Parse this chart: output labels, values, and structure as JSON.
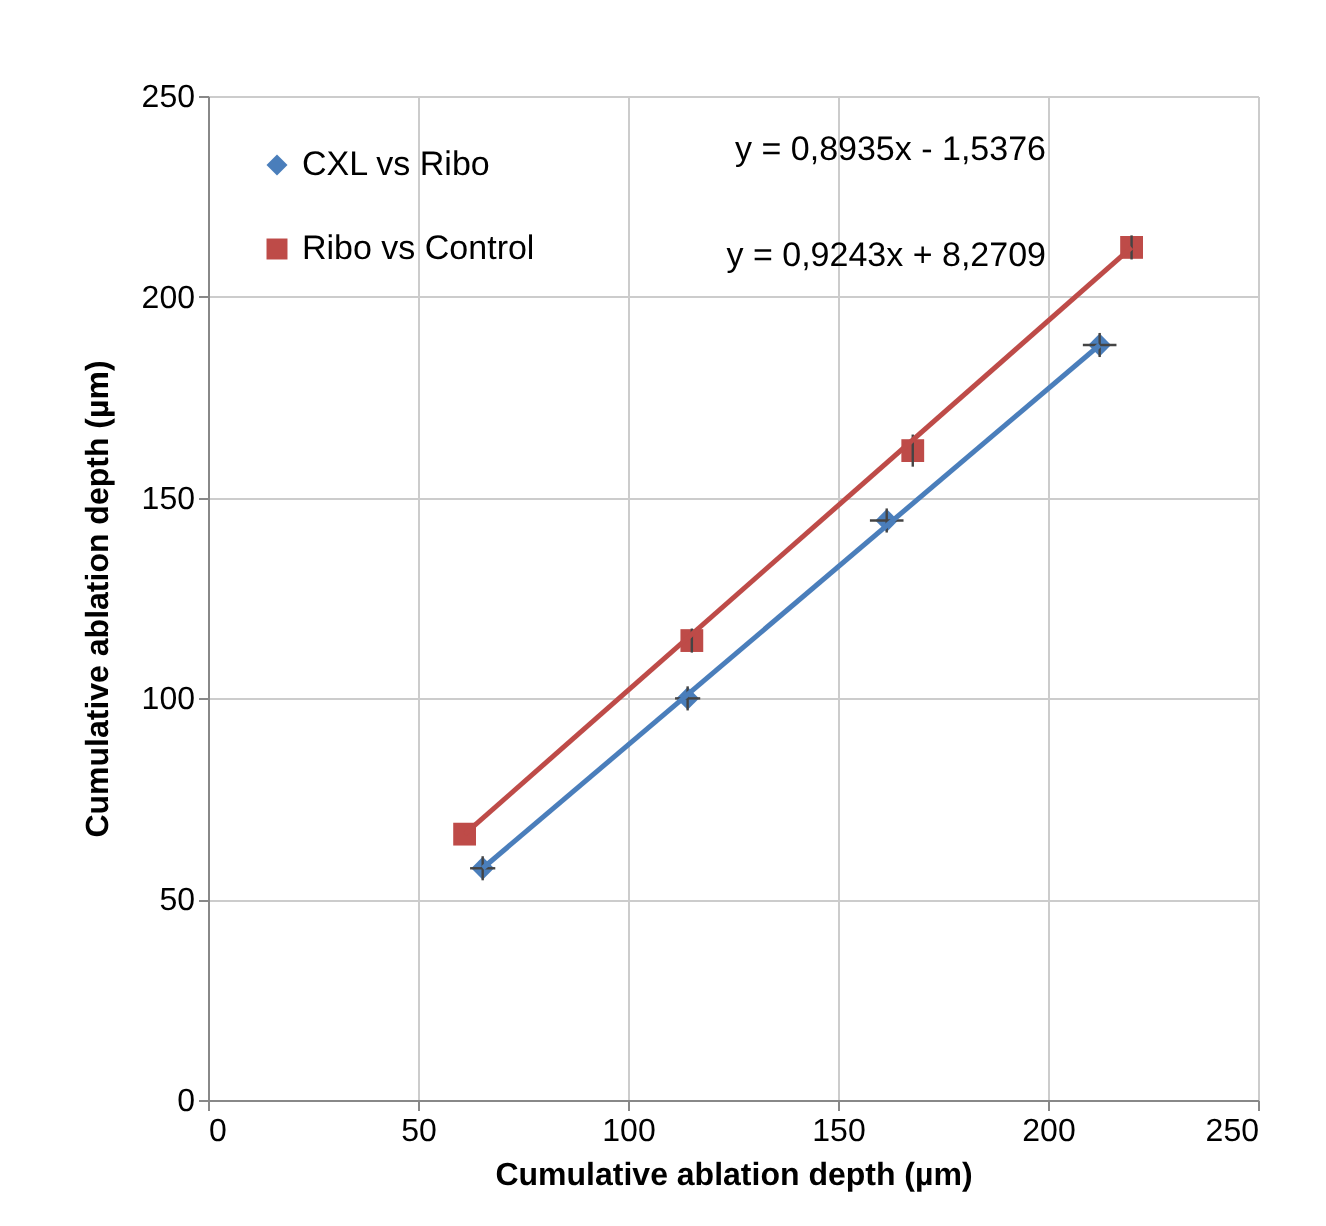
{
  "chart_data": {
    "type": "scatter",
    "xlabel": "Cumulative ablation depth (µm)",
    "ylabel": "Cumulative ablation depth (µm)",
    "xlim": [
      0,
      250
    ],
    "xticks": [
      0,
      50,
      100,
      150,
      200,
      250
    ],
    "ylim": [
      0,
      250
    ],
    "yticks": [
      0,
      50,
      100,
      150,
      200,
      250
    ],
    "grid": true,
    "legend": "top left",
    "annotations": [
      "y = 0,8935x - 1,5376",
      "y = 0,9243x + 8,2709"
    ],
    "series": [
      {
        "name": "CXL vs Ribo",
        "marker": "diamond",
        "color": "#4a7ebb",
        "x": [
          65.4,
          114.2,
          161.6,
          212.3
        ],
        "values": [
          57.7,
          100,
          144.3,
          188
        ],
        "errors": [
          3,
          3,
          3,
          3
        ],
        "xerrors": [
          3,
          3,
          4,
          4
        ]
      },
      {
        "name": "Ribo vs Control",
        "marker": "square",
        "color": "#be4b48",
        "x": [
          61.1,
          115.2,
          167.8,
          219.9
        ],
        "values": [
          66.2,
          114.4,
          161.7,
          212.3
        ],
        "errors": [
          null,
          3,
          4,
          3
        ]
      },
      {
        "type": "line",
        "color": "#4a7ebb",
        "x": [
          65.4,
          212.3
        ],
        "values": [
          57.7,
          188
        ]
      },
      {
        "type": "line",
        "color": "#be4b48",
        "x": [
          61.1,
          219.9
        ],
        "values": [
          66.2,
          212.3
        ]
      }
    ]
  }
}
